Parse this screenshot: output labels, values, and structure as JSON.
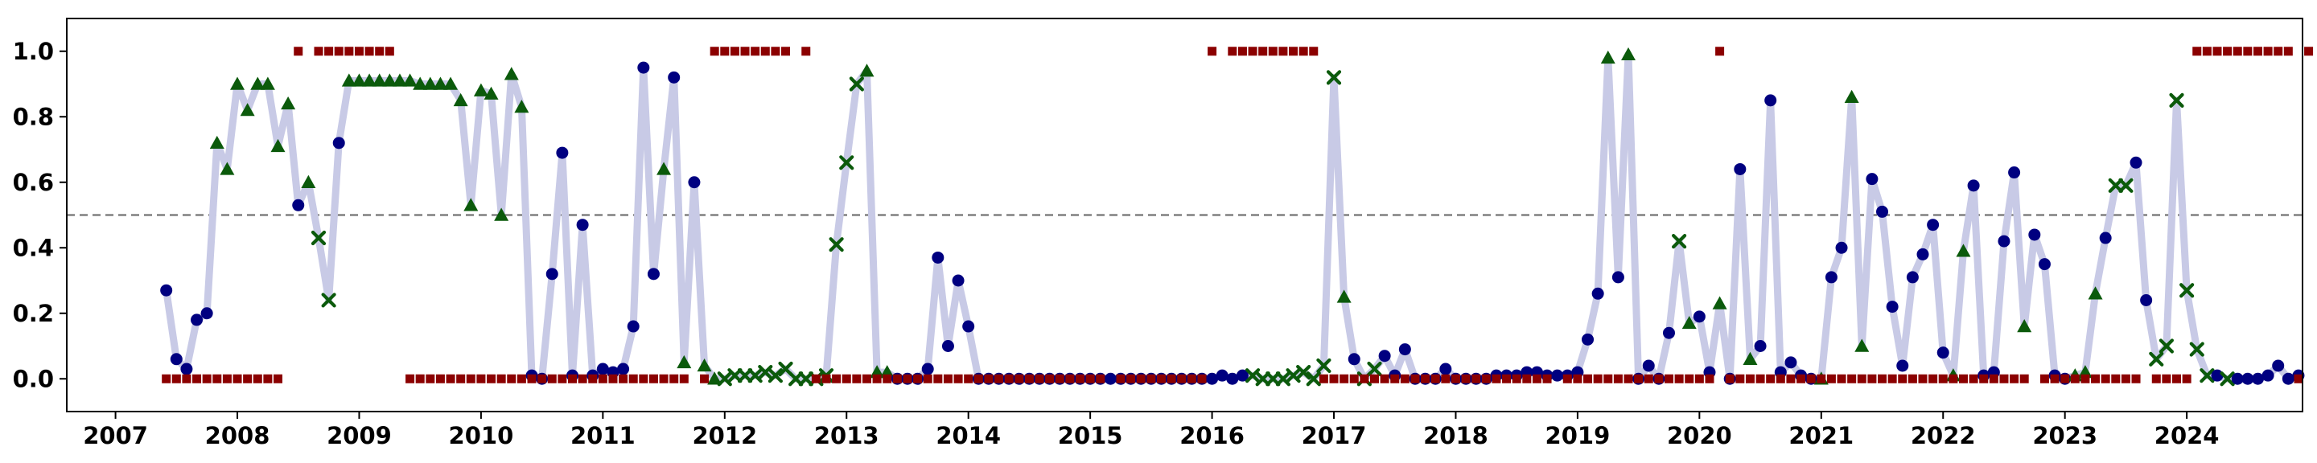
{
  "chart_data": {
    "type": "line",
    "title": "",
    "xlabel": "",
    "ylabel": "",
    "xlim": [
      2006.6,
      2024.95
    ],
    "ylim": [
      -0.1,
      1.1
    ],
    "x_ticks": [
      2007,
      2008,
      2009,
      2010,
      2011,
      2012,
      2013,
      2014,
      2015,
      2016,
      2017,
      2018,
      2019,
      2020,
      2021,
      2022,
      2023,
      2024
    ],
    "x_tick_labels": [
      "2007",
      "2008",
      "2009",
      "2010",
      "2011",
      "2012",
      "2013",
      "2014",
      "2015",
      "2016",
      "2017",
      "2018",
      "2019",
      "2020",
      "2021",
      "2022",
      "2023",
      "2024"
    ],
    "y_ticks": [
      0.0,
      0.2,
      0.4,
      0.6,
      0.8,
      1.0
    ],
    "y_tick_labels": [
      "0.0",
      "0.2",
      "0.4",
      "0.6",
      "0.8",
      "1.0"
    ],
    "threshold": 0.5,
    "grid": false,
    "legend": "none",
    "colors": {
      "line": "#c8cae6",
      "circle": "#000080",
      "triangle": "#0b5a0b",
      "cross": "#0b5a0b",
      "square": "#8b0000",
      "threshold": "#808080"
    },
    "start": [
      2007,
      6
    ],
    "values": [
      0.27,
      0.06,
      0.03,
      0.18,
      0.2,
      0.72,
      0.64,
      0.9,
      0.82,
      0.9,
      0.9,
      0.71,
      0.84,
      0.53,
      0.6,
      0.43,
      0.24,
      0.72,
      0.91,
      0.91,
      0.91,
      0.91,
      0.91,
      0.91,
      0.91,
      0.9,
      0.9,
      0.9,
      0.9,
      0.85,
      0.53,
      0.88,
      0.87,
      0.5,
      0.93,
      0.83,
      0.01,
      0.0,
      0.32,
      0.69,
      0.01,
      0.47,
      0.01,
      0.03,
      0.02,
      0.03,
      0.16,
      0.95,
      0.32,
      0.64,
      0.92,
      0.05,
      0.6,
      0.04,
      0.0,
      0.0,
      0.01,
      0.01,
      0.01,
      0.02,
      0.01,
      0.03,
      0.0,
      0.0,
      0.0,
      0.01,
      0.41,
      0.66,
      0.9,
      0.94,
      0.02,
      0.02,
      0.0,
      0.0,
      0.0,
      0.03,
      0.37,
      0.1,
      0.3,
      0.16,
      0.0,
      0.0,
      0.0,
      0.0,
      0.0,
      0.0,
      0.0,
      0.0,
      0.0,
      0.0,
      0.0,
      0.0,
      0.0,
      0.0,
      0.0,
      0.0,
      0.0,
      0.0,
      0.0,
      0.0,
      0.0,
      0.0,
      0.0,
      0.0,
      0.01,
      0.0,
      0.01,
      0.01,
      0.0,
      0.0,
      0.0,
      0.01,
      0.02,
      0.0,
      0.04,
      0.92,
      0.25,
      0.06,
      0.0,
      0.03,
      0.07,
      0.01,
      0.09,
      0.0,
      0.0,
      0.0,
      0.03,
      0.0,
      0.0,
      0.0,
      0.0,
      0.01,
      0.01,
      0.01,
      0.02,
      0.02,
      0.01,
      0.01,
      0.01,
      0.02,
      0.12,
      0.26,
      0.98,
      0.31,
      0.99,
      0.0,
      0.04,
      0.0,
      0.14,
      0.42,
      0.17,
      0.19,
      0.02,
      0.23,
      0.0,
      0.64,
      0.06,
      0.1,
      0.85,
      0.02,
      0.05,
      0.01,
      0.0,
      0.0,
      0.31,
      0.4,
      0.86,
      0.1,
      0.61,
      0.51,
      0.22,
      0.04,
      0.31,
      0.38,
      0.47,
      0.08,
      0.01,
      0.39,
      0.59,
      0.01,
      0.02,
      0.42,
      0.63,
      0.16,
      0.44,
      0.35,
      0.01,
      0.0,
      0.01,
      0.02,
      0.26,
      0.43,
      0.59,
      0.59,
      0.66,
      0.24,
      0.06,
      0.1,
      0.85,
      0.27,
      0.09,
      0.01,
      0.01,
      0.0,
      0.0,
      0.0,
      0.0,
      0.01,
      0.04,
      0.0,
      0.01
    ],
    "markers": "ooooo^^^^^^^^o^xxo^^^^^^^^^^^^^^^^^^ooooooooooooo^o^o^^xxxxxxxxxxxxxx^^^oooooooooooooooooooooooooooooooooooxxxxxxxxx^oxxoooooooooooooooooooooo^o^oooox^oo^oo^oooooo^oo^^oooooooo^^ooooo^oooo^^^oxxooxxxxxxox",
    "flag_start": [
      2007,
      6
    ],
    "flags": [
      0,
      0,
      0,
      0,
      0,
      0,
      0,
      0,
      0,
      0,
      0,
      0,
      0,
      1,
      0,
      1,
      1,
      1,
      1,
      1,
      1,
      1,
      1,
      1,
      0,
      0,
      0,
      0,
      0,
      0,
      0,
      0,
      0,
      0,
      0,
      0,
      0,
      0,
      0,
      0,
      0,
      0,
      0,
      0,
      0,
      0,
      0,
      0,
      0,
      0,
      0,
      0,
      0,
      0,
      1,
      1,
      1,
      1,
      1,
      1,
      1,
      1,
      1,
      1,
      0,
      0,
      0,
      0,
      0,
      0,
      0,
      0,
      0,
      0,
      0,
      0,
      0,
      0,
      0,
      0,
      0,
      0,
      0,
      0,
      0,
      0,
      0,
      0,
      0,
      0,
      0,
      0,
      0,
      0,
      0,
      0,
      0,
      0,
      0,
      0,
      0,
      0,
      0,
      1,
      0,
      1,
      1,
      1,
      1,
      1,
      1,
      1,
      1,
      1,
      0,
      0,
      0,
      0,
      0,
      0,
      0,
      0,
      0,
      0,
      0,
      0,
      0,
      0,
      0,
      0,
      0,
      0,
      0,
      0,
      0,
      0,
      0,
      0,
      0,
      0,
      0,
      0,
      0,
      0,
      0,
      0,
      0,
      0,
      0,
      0,
      0,
      0,
      0,
      1,
      0,
      0,
      0,
      0,
      0,
      0,
      0,
      0,
      0,
      0,
      0,
      0,
      0,
      0,
      0,
      0,
      0,
      0,
      0,
      0,
      0,
      0,
      0,
      0,
      0,
      0,
      0,
      0,
      0,
      0,
      0,
      0,
      0,
      0,
      0,
      0,
      0,
      0,
      0,
      0,
      0,
      0,
      0,
      0,
      0,
      0,
      1,
      1,
      1,
      1,
      1,
      1,
      1,
      1,
      1,
      1,
      0,
      1
    ],
    "flag_gaps": [
      "2008-06",
      "2008-08",
      "2009-05",
      "2011-10",
      "2012-08",
      "2015-03",
      "2016-02",
      "2018-11",
      "2022-10",
      "2023-09"
    ]
  }
}
